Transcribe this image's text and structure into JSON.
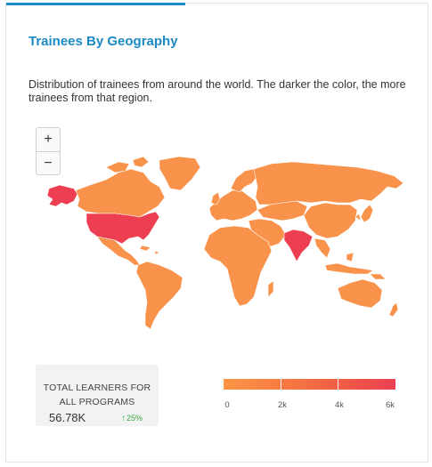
{
  "card": {
    "title": "Trainees By Geography",
    "description": "Distribution of trainees from around the world. The darker the color, the more trainees from that region."
  },
  "map": {
    "zoom_in_label": "+",
    "zoom_out_label": "−",
    "colors": {
      "base": "#f9924a",
      "mid": "#f47a44",
      "high": "#f05747",
      "max": "#ee3f52"
    },
    "regions": [
      {
        "name": "United States",
        "level": "max"
      },
      {
        "name": "Alaska",
        "level": "max"
      },
      {
        "name": "India",
        "level": "max"
      },
      {
        "name": "Canada",
        "level": "base"
      },
      {
        "name": "Russia",
        "level": "base"
      }
    ]
  },
  "stats": {
    "label": "TOTAL LEARNERS FOR ALL PROGRAMS",
    "value": "56.78K",
    "change_arrow": "↑",
    "change": "25%",
    "change_color": "#3aa845"
  },
  "legend": {
    "ticks": [
      "0",
      "2k",
      "4k",
      "6k"
    ],
    "colors": [
      "#fa9646",
      "#f77a42",
      "#f15b45",
      "#ed3f52"
    ]
  },
  "accent": "#1a8ac6"
}
